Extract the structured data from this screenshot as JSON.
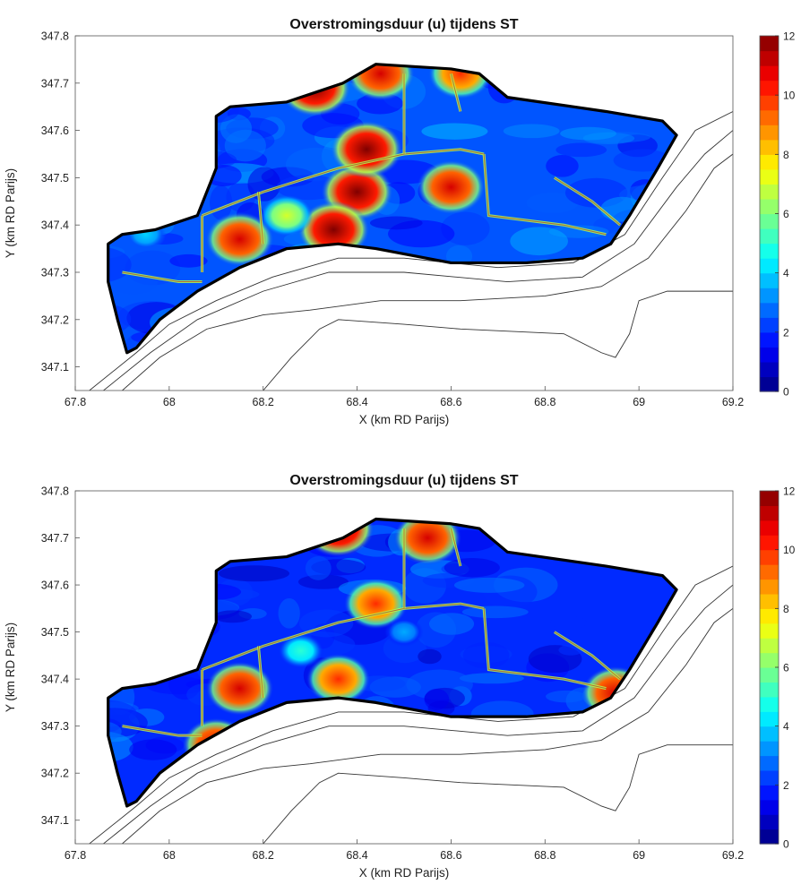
{
  "chart_data": [
    {
      "type": "heatmap",
      "title": "Overstromingsduur (u) tijdens ST",
      "xlabel": "X (km RD Parijs)",
      "ylabel": "Y (km RD Parijs)",
      "xlim": [
        67.8,
        69.2
      ],
      "ylim": [
        347.05,
        347.8
      ],
      "xticks": [
        "67.8",
        "68",
        "68.2",
        "68.4",
        "68.6",
        "68.8",
        "69",
        "69.2"
      ],
      "yticks": [
        "347.1",
        "347.2",
        "347.3",
        "347.4",
        "347.5",
        "347.6",
        "347.7",
        "347.8"
      ],
      "colorbar": {
        "range": [
          0,
          12
        ],
        "ticks": [
          "0",
          "2",
          "4",
          "6",
          "8",
          "10",
          "12"
        ],
        "colormap": "jet"
      },
      "background_level_hours": 2.5,
      "hotspots_hours": [
        {
          "x": 68.4,
          "y": 347.47,
          "value": 12
        },
        {
          "x": 68.35,
          "y": 347.39,
          "value": 12
        },
        {
          "x": 68.15,
          "y": 347.37,
          "value": 11
        },
        {
          "x": 68.42,
          "y": 347.56,
          "value": 12
        },
        {
          "x": 68.6,
          "y": 347.48,
          "value": 11
        },
        {
          "x": 68.31,
          "y": 347.69,
          "value": 12
        },
        {
          "x": 68.45,
          "y": 347.72,
          "value": 11
        },
        {
          "x": 68.62,
          "y": 347.72,
          "value": 10
        },
        {
          "x": 68.25,
          "y": 347.42,
          "value": 7
        },
        {
          "x": 67.95,
          "y": 347.38,
          "value": 4
        }
      ]
    },
    {
      "type": "heatmap",
      "title": "Overstromingsduur (u) tijdens ST",
      "xlabel": "X (km RD Parijs)",
      "ylabel": "Y (km RD Parijs)",
      "xlim": [
        67.8,
        69.2
      ],
      "ylim": [
        347.05,
        347.8
      ],
      "xticks": [
        "67.8",
        "68",
        "68.2",
        "68.4",
        "68.6",
        "68.8",
        "69",
        "69.2"
      ],
      "yticks": [
        "347.1",
        "347.2",
        "347.3",
        "347.4",
        "347.5",
        "347.6",
        "347.7",
        "347.8"
      ],
      "colorbar": {
        "range": [
          0,
          12
        ],
        "ticks": [
          "0",
          "2",
          "4",
          "6",
          "8",
          "10",
          "12"
        ],
        "colormap": "jet"
      },
      "background_level_hours": 2,
      "hotspots_hours": [
        {
          "x": 68.36,
          "y": 347.72,
          "value": 12
        },
        {
          "x": 68.55,
          "y": 347.7,
          "value": 11
        },
        {
          "x": 68.15,
          "y": 347.38,
          "value": 11
        },
        {
          "x": 68.36,
          "y": 347.4,
          "value": 10
        },
        {
          "x": 68.95,
          "y": 347.37,
          "value": 11
        },
        {
          "x": 68.1,
          "y": 347.26,
          "value": 11
        },
        {
          "x": 68.44,
          "y": 347.56,
          "value": 10
        },
        {
          "x": 68.28,
          "y": 347.46,
          "value": 5
        },
        {
          "x": 68.5,
          "y": 347.5,
          "value": 3.5
        }
      ]
    }
  ]
}
